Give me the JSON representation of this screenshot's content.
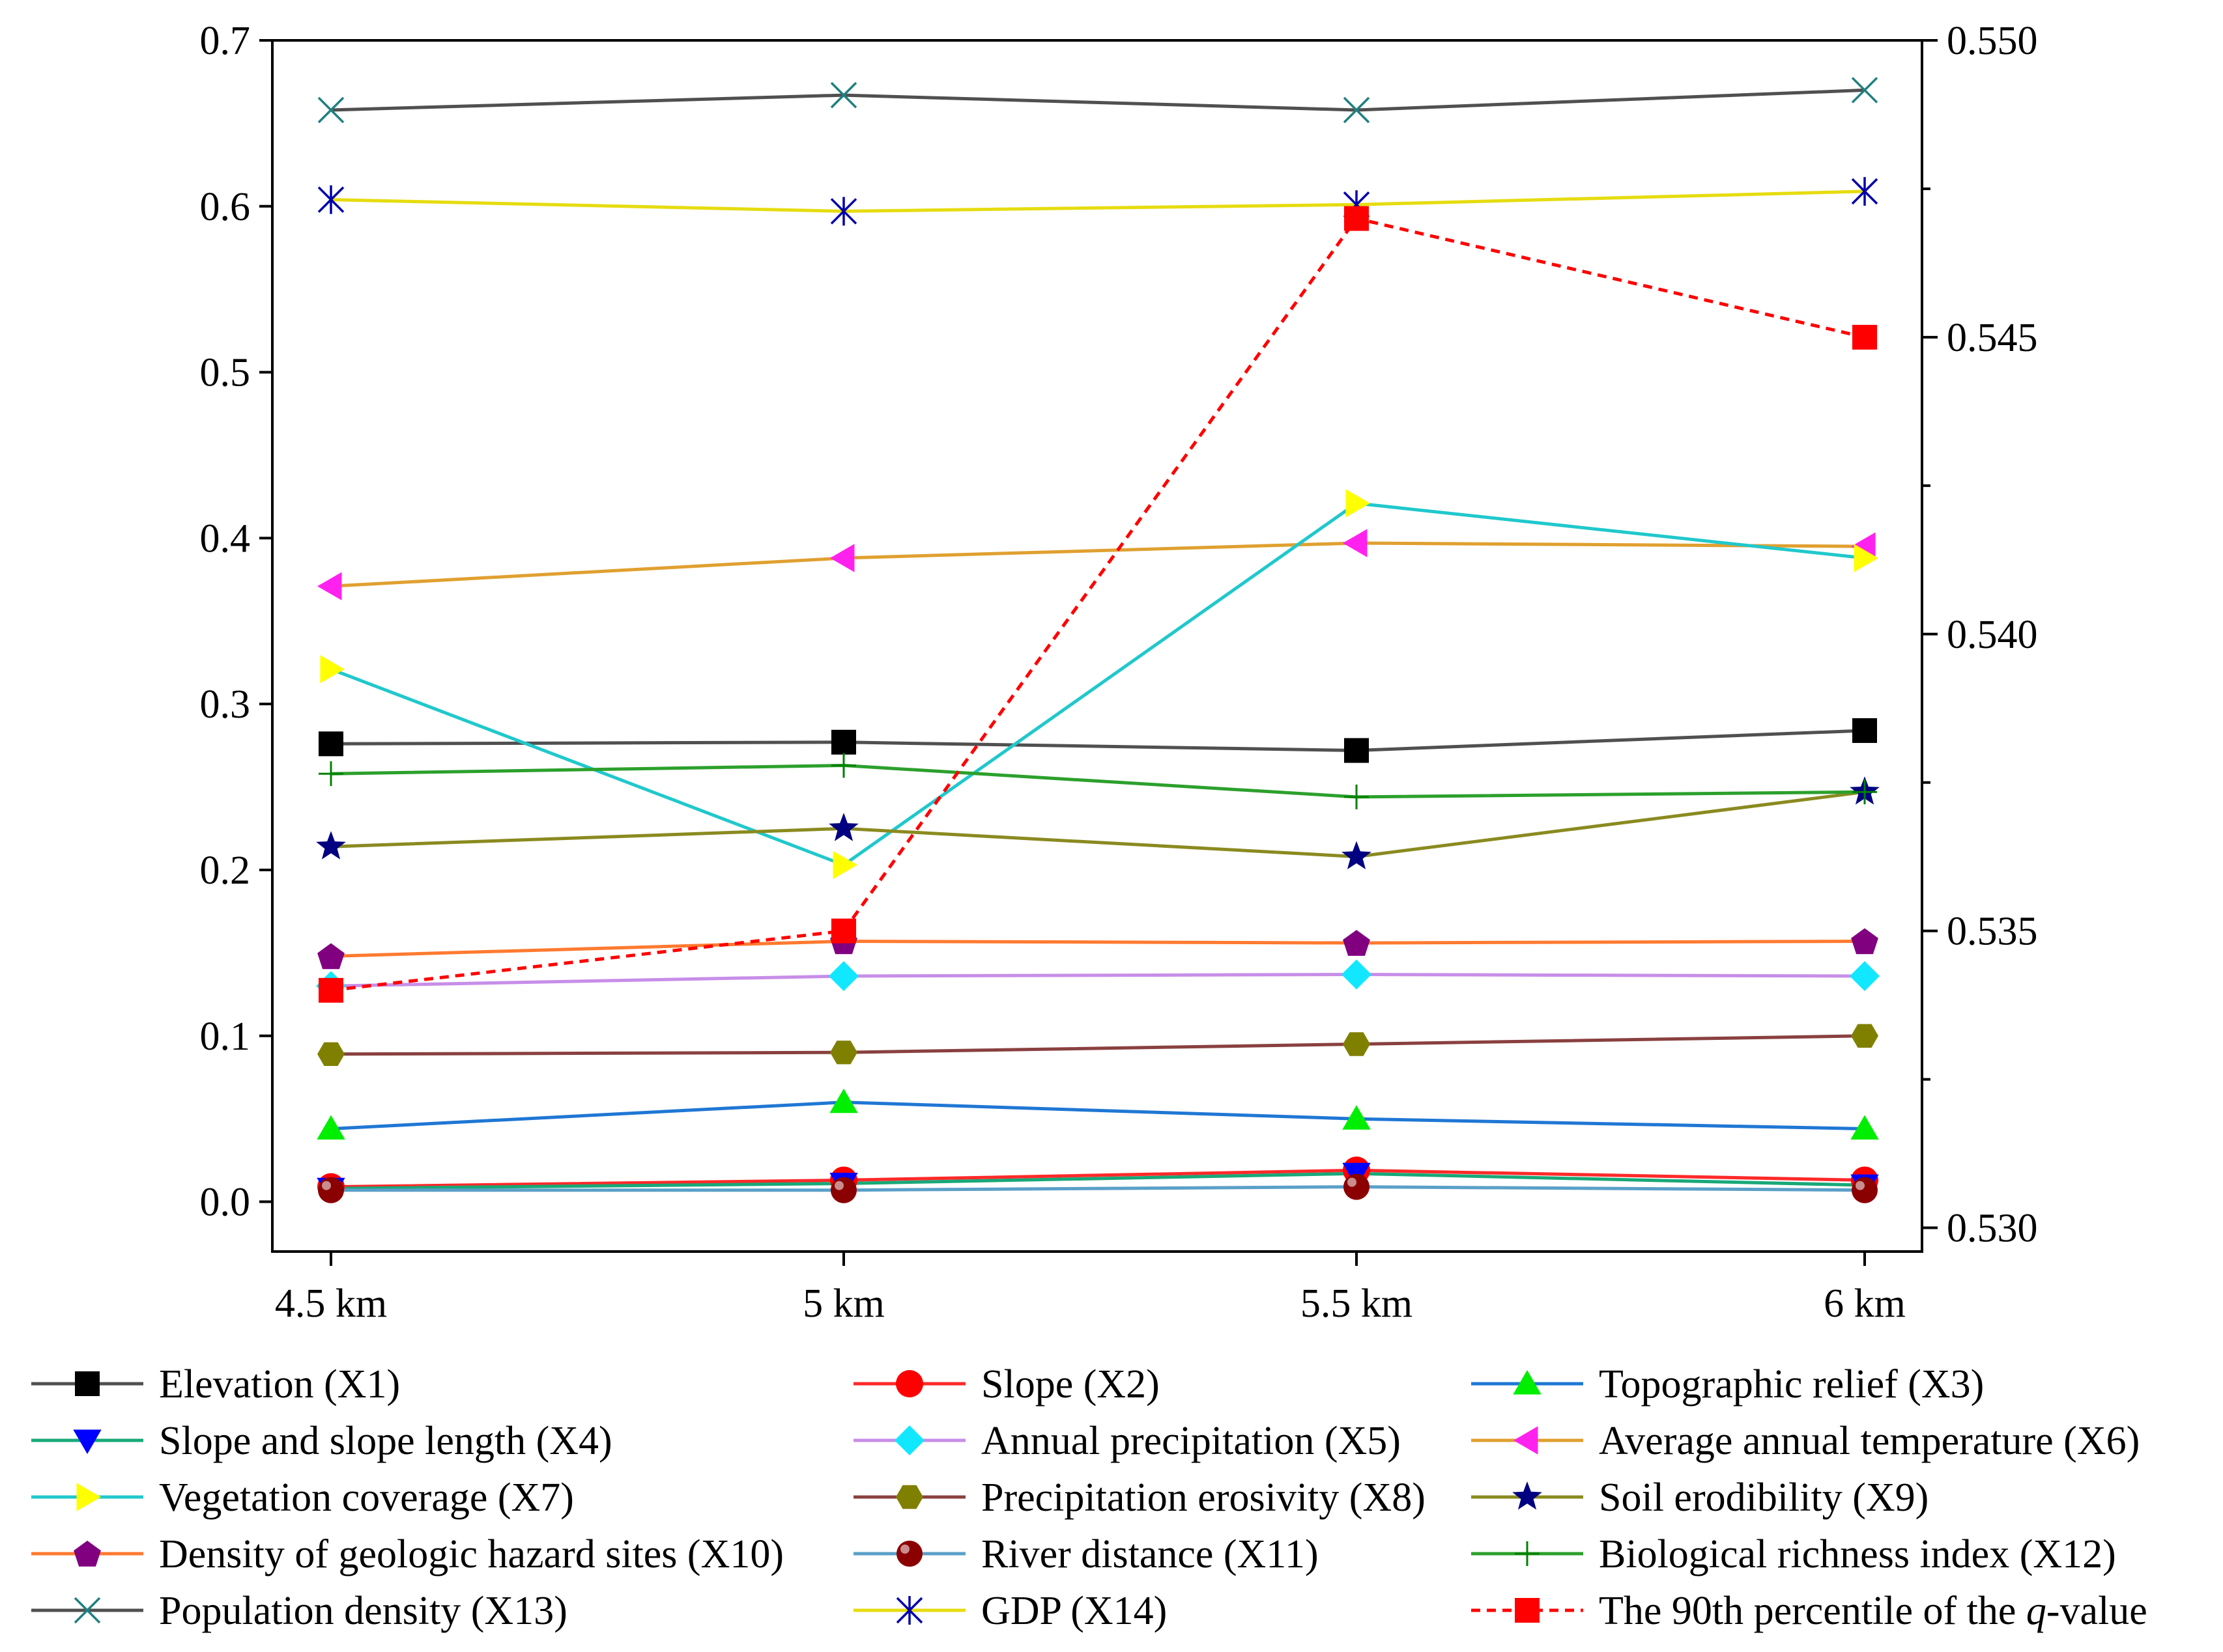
{
  "chart_data": {
    "type": "line",
    "categories": [
      "4.5 km",
      "5 km",
      "5.5 km",
      "6 km"
    ],
    "left_axis": {
      "ylim": [
        -0.03,
        0.7
      ],
      "ticks": [
        0.0,
        0.1,
        0.2,
        0.3,
        0.4,
        0.5,
        0.6,
        0.7
      ],
      "tick_labels": [
        "0.0",
        "0.1",
        "0.2",
        "0.3",
        "0.4",
        "0.5",
        "0.6",
        "0.7"
      ]
    },
    "right_axis": {
      "ylim": [
        0.5296,
        0.55
      ],
      "ticks": [
        0.53,
        0.535,
        0.54,
        0.545,
        0.55
      ],
      "tick_labels": [
        "0.530",
        "0.535",
        "0.540",
        "0.545",
        "0.550"
      ]
    },
    "grid": false,
    "legend_position": "bottom",
    "series": [
      {
        "name": "Elevation (X1)",
        "axis": "left",
        "color": "#505050",
        "marker": "square",
        "marker_color": "#000000",
        "values": [
          0.276,
          0.277,
          0.272,
          0.284
        ]
      },
      {
        "name": "Slope (X2)",
        "axis": "left",
        "color": "#ff2a2a",
        "marker": "circle",
        "marker_color": "#ff0000",
        "values": [
          0.009,
          0.013,
          0.019,
          0.013
        ]
      },
      {
        "name": "Topographic relief (X3)",
        "axis": "left",
        "color": "#1f77d4",
        "marker": "triangle-up",
        "marker_color": "#00ee00",
        "values": [
          0.044,
          0.06,
          0.05,
          0.044
        ]
      },
      {
        "name": "Slope and slope length (X4)",
        "axis": "left",
        "color": "#18a878",
        "marker": "triangle-down",
        "marker_color": "#0000ff",
        "values": [
          0.008,
          0.011,
          0.017,
          0.01
        ]
      },
      {
        "name": "Annual precipitation (X5)",
        "axis": "left",
        "color": "#c78ee8",
        "marker": "diamond",
        "marker_color": "#11e8ff",
        "values": [
          0.13,
          0.136,
          0.137,
          0.136
        ]
      },
      {
        "name": "Average annual temperature (X6)",
        "axis": "left",
        "color": "#e0a030",
        "marker": "triangle-left",
        "marker_color": "#ff22ee",
        "values": [
          0.371,
          0.388,
          0.397,
          0.395
        ]
      },
      {
        "name": "Vegetation coverage (X7)",
        "axis": "left",
        "color": "#20c8cc",
        "marker": "triangle-right",
        "marker_color": "#ffff00",
        "values": [
          0.321,
          0.203,
          0.421,
          0.388
        ]
      },
      {
        "name": "Precipitation erosivity (X8)",
        "axis": "left",
        "color": "#8a4040",
        "marker": "hexagon",
        "marker_color": "#808000",
        "values": [
          0.089,
          0.09,
          0.095,
          0.1
        ]
      },
      {
        "name": "Soil erodibility (X9)",
        "axis": "left",
        "color": "#8a8a20",
        "marker": "star",
        "marker_color": "#000080",
        "values": [
          0.214,
          0.225,
          0.208,
          0.247
        ]
      },
      {
        "name": "Density of geologic hazard sites (X10)",
        "axis": "left",
        "color": "#ff7a30",
        "marker": "pentagon",
        "marker_color": "#800080",
        "values": [
          0.148,
          0.157,
          0.156,
          0.157
        ]
      },
      {
        "name": "River distance (X11)",
        "axis": "left",
        "color": "#5aa0c8",
        "marker": "sphere",
        "marker_color": "#8b0000",
        "values": [
          0.007,
          0.007,
          0.009,
          0.007
        ]
      },
      {
        "name": "Biological richness index (X12)",
        "axis": "left",
        "color": "#2ca02c",
        "marker": "plus",
        "marker_color": "#008000",
        "values": [
          0.258,
          0.263,
          0.244,
          0.247
        ]
      },
      {
        "name": "Population density (X13)",
        "axis": "left",
        "color": "#505050",
        "marker": "x",
        "marker_color": "#208080",
        "values": [
          0.658,
          0.667,
          0.658,
          0.67
        ]
      },
      {
        "name": "GDP (X14)",
        "axis": "left",
        "color": "#e6dc10",
        "marker": "asterisk",
        "marker_color": "#0000aa",
        "values": [
          0.604,
          0.597,
          0.601,
          0.609
        ]
      },
      {
        "name": "The 90th percentile of the q-value",
        "axis": "right",
        "color": "#ff0000",
        "dashed": true,
        "marker": "square",
        "marker_color": "#ff0000",
        "values": [
          0.534,
          0.535,
          0.547,
          0.545
        ]
      }
    ],
    "legend_labels": [
      {
        "pre": "Elevation (X1)",
        "ital": "",
        "post": ""
      },
      {
        "pre": "Slope (X2)",
        "ital": "",
        "post": ""
      },
      {
        "pre": "Topographic relief (X3)",
        "ital": "",
        "post": ""
      },
      {
        "pre": "Slope and slope length (X4)",
        "ital": "",
        "post": ""
      },
      {
        "pre": "Annual precipitation (X5)",
        "ital": "",
        "post": ""
      },
      {
        "pre": "Average annual temperature (X6)",
        "ital": "",
        "post": ""
      },
      {
        "pre": "Vegetation coverage (X7)",
        "ital": "",
        "post": ""
      },
      {
        "pre": "Precipitation erosivity (X8)",
        "ital": "",
        "post": ""
      },
      {
        "pre": "Soil erodibility (X9)",
        "ital": "",
        "post": ""
      },
      {
        "pre": "Density of geologic hazard sites (X10)",
        "ital": "",
        "post": ""
      },
      {
        "pre": "River distance (X11)",
        "ital": "",
        "post": ""
      },
      {
        "pre": "Biological richness index (X12)",
        "ital": "",
        "post": ""
      },
      {
        "pre": "Population density (X13)",
        "ital": "",
        "post": ""
      },
      {
        "pre": "GDP (X14)",
        "ital": "",
        "post": ""
      },
      {
        "pre": "The 90th percentile of the ",
        "ital": "q",
        "post": "-value"
      }
    ]
  }
}
